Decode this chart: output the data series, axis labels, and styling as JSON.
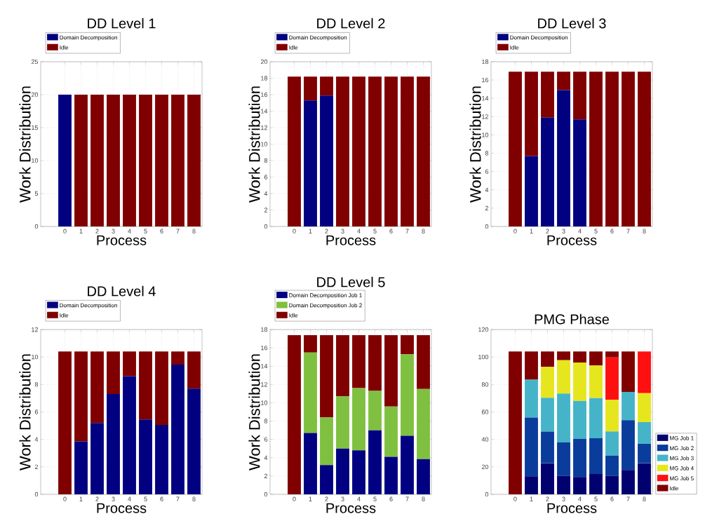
{
  "chart_data": [
    {
      "type": "bar",
      "stacked": true,
      "title": "DD Level 1",
      "xlabel": "Process",
      "ylabel": "Work Distribution",
      "categories": [
        "0",
        "1",
        "2",
        "3",
        "4",
        "5",
        "6",
        "7",
        "8"
      ],
      "series": [
        {
          "name": "Domain Decomposition",
          "color": "#000080",
          "values": [
            20,
            0,
            0,
            0,
            0,
            0,
            0,
            0,
            0
          ]
        },
        {
          "name": "Idle",
          "color": "#800000",
          "values": [
            0,
            20,
            20,
            20,
            20,
            20,
            20,
            20,
            20
          ]
        }
      ],
      "ylim": [
        0,
        25
      ],
      "yticks": [
        0,
        5,
        10,
        15,
        20,
        25
      ],
      "grid": true,
      "legend": "top left"
    },
    {
      "type": "bar",
      "stacked": true,
      "title": "DD Level 2",
      "xlabel": "Process",
      "ylabel": "Work Distribution",
      "categories": [
        "0",
        "1",
        "2",
        "3",
        "4",
        "5",
        "6",
        "7",
        "8"
      ],
      "series": [
        {
          "name": "Domain Decomposition",
          "color": "#000080",
          "values": [
            0,
            15.3,
            15.9,
            0,
            0,
            0,
            0,
            0,
            0
          ]
        },
        {
          "name": "Idle",
          "color": "#800000",
          "values": [
            18.2,
            2.9,
            2.3,
            18.2,
            18.2,
            18.2,
            18.2,
            18.2,
            18.2
          ]
        }
      ],
      "ylim": [
        0,
        20
      ],
      "yticks": [
        0,
        2,
        4,
        6,
        8,
        10,
        12,
        14,
        16,
        18,
        20
      ],
      "grid": true,
      "legend": "top left"
    },
    {
      "type": "bar",
      "stacked": true,
      "title": "DD Level 3",
      "xlabel": "Process",
      "ylabel": "Work Distribution",
      "categories": [
        "0",
        "1",
        "2",
        "3",
        "4",
        "5",
        "6",
        "7",
        "8"
      ],
      "series": [
        {
          "name": "Domain Decomposition",
          "color": "#000080",
          "values": [
            0,
            7.7,
            11.9,
            14.9,
            11.7,
            0,
            0,
            0,
            0
          ]
        },
        {
          "name": "Idle",
          "color": "#800000",
          "values": [
            16.9,
            9.2,
            5.0,
            2.0,
            5.2,
            16.9,
            16.9,
            16.9,
            16.9
          ]
        }
      ],
      "ylim": [
        0,
        18
      ],
      "yticks": [
        0,
        2,
        4,
        6,
        8,
        10,
        12,
        14,
        16,
        18
      ],
      "grid": true,
      "legend": "top left"
    },
    {
      "type": "bar",
      "stacked": true,
      "title": "DD Level 4",
      "xlabel": "Process",
      "ylabel": "Work Distribution",
      "categories": [
        "0",
        "1",
        "2",
        "3",
        "4",
        "5",
        "6",
        "7",
        "8"
      ],
      "series": [
        {
          "name": "Domain Decomposition",
          "color": "#000080",
          "values": [
            0,
            3.85,
            5.2,
            7.3,
            8.6,
            5.45,
            5.05,
            9.45,
            7.7
          ]
        },
        {
          "name": "Idle",
          "color": "#800000",
          "values": [
            10.4,
            6.55,
            5.2,
            3.1,
            1.8,
            4.95,
            5.35,
            0.95,
            2.7
          ]
        }
      ],
      "ylim": [
        0,
        12
      ],
      "yticks": [
        0,
        2,
        4,
        6,
        8,
        10,
        12
      ],
      "grid": true,
      "legend": "top left"
    },
    {
      "type": "bar",
      "stacked": true,
      "title": "DD Level 5",
      "xlabel": "Process",
      "ylabel": "Work Distribution",
      "categories": [
        "0",
        "1",
        "2",
        "3",
        "4",
        "5",
        "6",
        "7",
        "8"
      ],
      "series": [
        {
          "name": "Domain Decomposition Job 1",
          "color": "#000080",
          "values": [
            0,
            6.7,
            3.2,
            5.0,
            4.8,
            7.0,
            4.1,
            6.4,
            3.85
          ]
        },
        {
          "name": "Domain Decomposition Job 2",
          "color": "#80c040",
          "values": [
            0,
            8.8,
            5.2,
            5.7,
            6.8,
            4.3,
            5.5,
            8.9,
            7.65
          ]
        },
        {
          "name": "Idle",
          "color": "#800000",
          "values": [
            17.4,
            1.9,
            9.0,
            6.7,
            5.8,
            6.1,
            7.8,
            2.1,
            5.9
          ]
        }
      ],
      "ylim": [
        0,
        18
      ],
      "yticks": [
        0,
        2,
        4,
        6,
        8,
        10,
        12,
        14,
        16,
        18
      ],
      "grid": true,
      "legend": "top left"
    },
    {
      "type": "bar",
      "stacked": true,
      "title": "PMG Phase",
      "xlabel": "Process",
      "ylabel": null,
      "categories": [
        "0",
        "1",
        "2",
        "3",
        "4",
        "5",
        "6",
        "7",
        "8"
      ],
      "series": [
        {
          "name": "MG Job 1",
          "color": "#00006e",
          "values": [
            0,
            13.1,
            22.7,
            13.4,
            12.6,
            14.8,
            13.4,
            17.8,
            22.7
          ]
        },
        {
          "name": "MG Job 2",
          "color": "#0a3c9c",
          "values": [
            0,
            42.8,
            23.0,
            24.4,
            27.8,
            26.1,
            14.8,
            36.2,
            14.1
          ]
        },
        {
          "name": "MG Job 3",
          "color": "#46b4c8",
          "values": [
            0,
            27.6,
            24.6,
            35.6,
            27.7,
            29.2,
            17.6,
            20.6,
            15.8
          ]
        },
        {
          "name": "MG Job 4",
          "color": "#e6e61e",
          "values": [
            0,
            0,
            22.5,
            24.3,
            27.9,
            23.7,
            23.0,
            0,
            21.1
          ]
        },
        {
          "name": "MG Job 5",
          "color": "#ff1010",
          "values": [
            0,
            0,
            0,
            0,
            0,
            0,
            30.9,
            0,
            30.3
          ]
        },
        {
          "name": "Idle",
          "color": "#800000",
          "values": [
            104,
            20.5,
            11.2,
            6.3,
            8.0,
            10.2,
            4.3,
            29.4,
            0
          ]
        }
      ],
      "ylim": [
        0,
        120
      ],
      "yticks": [
        0,
        20,
        40,
        60,
        80,
        100,
        120
      ],
      "grid": true,
      "legend": "bottom right"
    }
  ]
}
